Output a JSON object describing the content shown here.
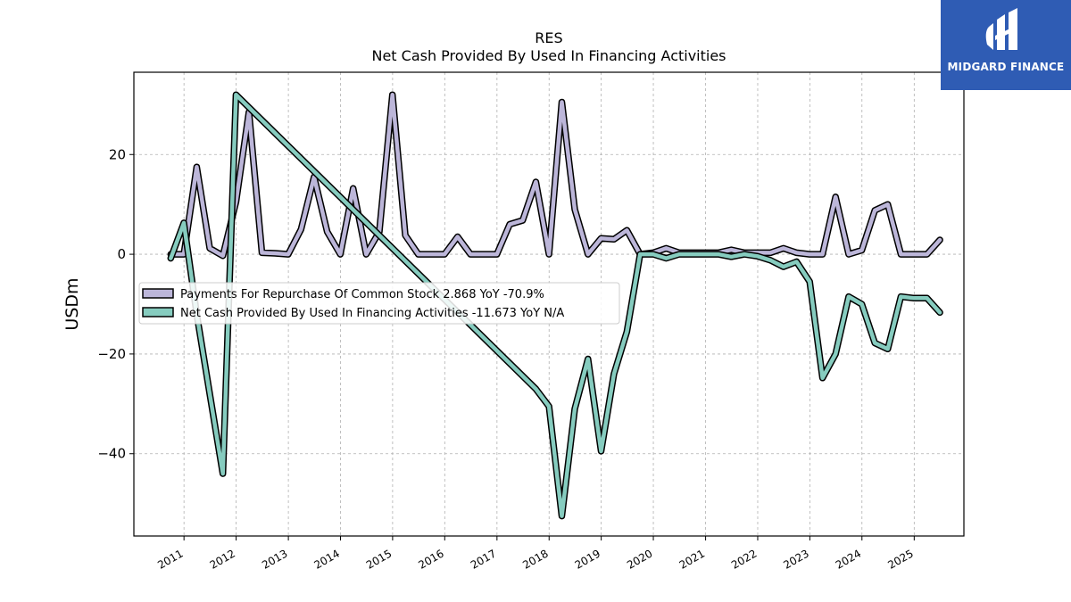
{
  "brand": {
    "name": "MIDGARD FINANCE",
    "bg_color": "#2f5cb4"
  },
  "chart_data": {
    "type": "line",
    "title": "RES",
    "subtitle": "Net Cash Provided By Used In Financing Activities",
    "ylabel": "USDm",
    "xlabel": "",
    "ylim": [
      -56.5,
      36.5
    ],
    "xlim": [
      "2010-01-15",
      "2025-12-15"
    ],
    "yticks": [
      20,
      0,
      -20,
      -40
    ],
    "ytick_labels": [
      "20",
      "0",
      "−20",
      "−40"
    ],
    "xticks": [
      "2011",
      "2012",
      "2013",
      "2014",
      "2015",
      "2016",
      "2017",
      "2018",
      "2019",
      "2020",
      "2021",
      "2022",
      "2023",
      "2024",
      "2025"
    ],
    "grid": true,
    "legend_position": "center-left",
    "series": [
      {
        "name": "Payments For Repurchase Of Common Stock",
        "legend_label": "Payments For Repurchase Of Common Stock  2.868 YoY -70.9%",
        "color": "#bcb6d9",
        "points": [
          [
            "2010-09-30",
            0
          ],
          [
            "2010-12-31",
            0
          ],
          [
            "2011-03-31",
            17.5
          ],
          [
            "2011-06-30",
            1.2
          ],
          [
            "2011-09-30",
            -0.3
          ],
          [
            "2011-12-31",
            10.5
          ],
          [
            "2012-03-31",
            28.5
          ],
          [
            "2012-06-30",
            0.3
          ],
          [
            "2012-09-30",
            0.2
          ],
          [
            "2012-12-31",
            0
          ],
          [
            "2013-03-31",
            5
          ],
          [
            "2013-06-30",
            15.5
          ],
          [
            "2013-09-30",
            4.5
          ],
          [
            "2013-12-31",
            0
          ],
          [
            "2014-03-31",
            13.2
          ],
          [
            "2014-06-30",
            0
          ],
          [
            "2014-09-30",
            4.5
          ],
          [
            "2014-12-31",
            32
          ],
          [
            "2015-03-31",
            3.8
          ],
          [
            "2015-06-30",
            0
          ],
          [
            "2015-09-30",
            0
          ],
          [
            "2015-12-31",
            0
          ],
          [
            "2016-03-31",
            3.5
          ],
          [
            "2016-06-30",
            0
          ],
          [
            "2016-09-30",
            0
          ],
          [
            "2016-12-31",
            0
          ],
          [
            "2017-03-31",
            6
          ],
          [
            "2017-06-30",
            6.8
          ],
          [
            "2017-09-30",
            14.5
          ],
          [
            "2017-12-31",
            0
          ],
          [
            "2018-03-31",
            30.5
          ],
          [
            "2018-06-30",
            9
          ],
          [
            "2018-09-30",
            0
          ],
          [
            "2018-12-31",
            3.2
          ],
          [
            "2019-03-31",
            3
          ],
          [
            "2019-06-30",
            4.8
          ],
          [
            "2019-09-30",
            0
          ],
          [
            "2019-12-31",
            0.3
          ],
          [
            "2020-03-31",
            1.2
          ],
          [
            "2020-06-30",
            0.3
          ],
          [
            "2020-09-30",
            0.3
          ],
          [
            "2020-12-31",
            0.3
          ],
          [
            "2021-03-31",
            0.3
          ],
          [
            "2021-06-30",
            0.9
          ],
          [
            "2021-09-30",
            0.3
          ],
          [
            "2021-12-31",
            0.3
          ],
          [
            "2022-03-31",
            0.3
          ],
          [
            "2022-06-30",
            1.2
          ],
          [
            "2022-09-30",
            0.3
          ],
          [
            "2022-12-31",
            0
          ],
          [
            "2023-03-31",
            0
          ],
          [
            "2023-06-30",
            11.5
          ],
          [
            "2023-09-30",
            0
          ],
          [
            "2023-12-31",
            0.8
          ],
          [
            "2024-03-31",
            8.8
          ],
          [
            "2024-06-30",
            10
          ],
          [
            "2024-09-30",
            0
          ],
          [
            "2024-12-31",
            0
          ],
          [
            "2025-03-31",
            0
          ],
          [
            "2025-06-30",
            2.868
          ]
        ]
      },
      {
        "name": "Net Cash Provided By Used In Financing Activities",
        "legend_label": "Net Cash Provided By Used In Financing Activities  -11.673 YoY N/A",
        "color": "#86ccbf",
        "points": [
          [
            "2010-09-30",
            -0.8
          ],
          [
            "2010-12-31",
            6.3
          ],
          [
            "2011-03-31",
            -12
          ],
          [
            "2011-06-30",
            -28
          ],
          [
            "2011-09-30",
            -44
          ],
          [
            "2011-12-31",
            32
          ],
          [
            "2017-09-30",
            -27
          ],
          [
            "2017-12-31",
            -30.5
          ],
          [
            "2018-03-31",
            -52.5
          ],
          [
            "2018-06-30",
            -31
          ],
          [
            "2018-09-30",
            -21
          ],
          [
            "2018-12-31",
            -39.5
          ],
          [
            "2019-03-31",
            -24
          ],
          [
            "2019-06-30",
            -15.5
          ],
          [
            "2019-09-30",
            0
          ],
          [
            "2019-12-31",
            0
          ],
          [
            "2020-03-31",
            -0.8
          ],
          [
            "2020-06-30",
            0
          ],
          [
            "2020-09-30",
            0
          ],
          [
            "2020-12-31",
            0
          ],
          [
            "2021-03-31",
            0
          ],
          [
            "2021-06-30",
            -0.5
          ],
          [
            "2021-09-30",
            0
          ],
          [
            "2021-12-31",
            -0.4
          ],
          [
            "2022-03-31",
            -1.2
          ],
          [
            "2022-06-30",
            -2.5
          ],
          [
            "2022-09-30",
            -1.5
          ],
          [
            "2022-12-31",
            -5.5
          ],
          [
            "2023-03-31",
            -24.8
          ],
          [
            "2023-06-30",
            -20
          ],
          [
            "2023-09-30",
            -8.5
          ],
          [
            "2023-12-31",
            -10
          ],
          [
            "2024-03-31",
            -17.8
          ],
          [
            "2024-06-30",
            -19
          ],
          [
            "2024-09-30",
            -8.5
          ],
          [
            "2024-12-31",
            -8.8
          ],
          [
            "2025-03-31",
            -8.8
          ],
          [
            "2025-06-30",
            -11.673
          ]
        ]
      }
    ]
  }
}
